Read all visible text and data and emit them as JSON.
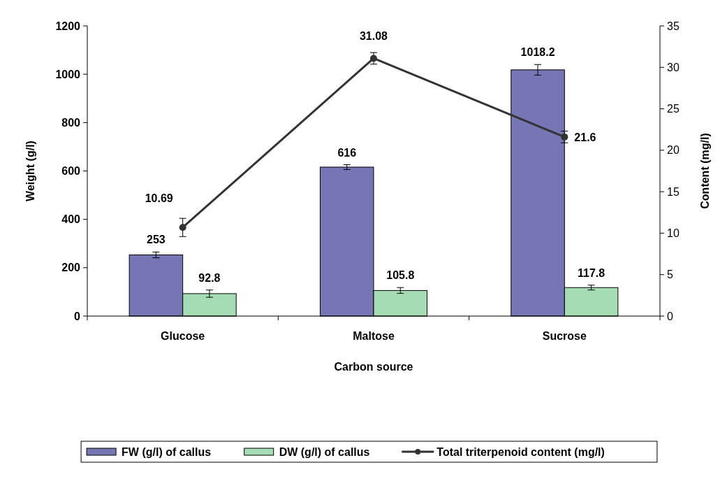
{
  "chart_data": {
    "type": "bar",
    "xlabel": "Carbon source",
    "ylabel": "Weight (g/l)",
    "y2label": "Content (mg/l)",
    "categories": [
      "Glucose",
      "Maltose",
      "Sucrose"
    ],
    "series": [
      {
        "name": "FW (g/l) of callus",
        "color": "#7676b4",
        "values": [
          253,
          616,
          1018.2
        ],
        "errors": [
          12,
          10,
          22
        ]
      },
      {
        "name": "DW (g/l) of callus",
        "color": "#a6dcb4",
        "values": [
          92.8,
          105.8,
          117.8
        ],
        "errors": [
          15,
          12,
          10
        ]
      },
      {
        "name": "Total triterpenoid content (mg/l)",
        "type": "line",
        "axis": "y2",
        "color": "#333333",
        "marker": "circle",
        "values": [
          10.69,
          31.08,
          21.6
        ],
        "errors": [
          1.1,
          0.7,
          0.7
        ]
      }
    ],
    "ylim": [
      0,
      1200
    ],
    "yticks": [
      0,
      200,
      400,
      600,
      800,
      1000,
      1200
    ],
    "y2lim": [
      0,
      35
    ],
    "y2ticks": [
      0,
      5,
      10,
      15,
      20,
      25,
      30,
      35
    ],
    "data_labels": true,
    "legend": "bottom",
    "grid": false
  }
}
